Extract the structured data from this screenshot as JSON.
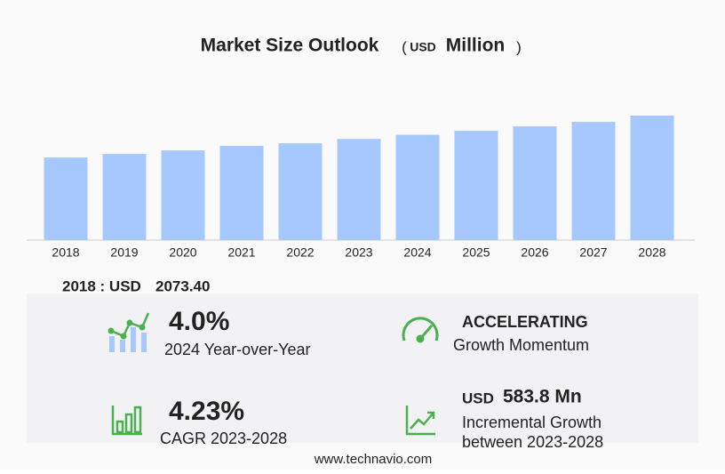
{
  "chart_data": {
    "type": "bar",
    "title": "Market Size Outlook",
    "unit_open": "(",
    "unit_currency": "USD",
    "unit_name": "Million",
    "unit_close": ")",
    "categories": [
      "2018",
      "2019",
      "2020",
      "2021",
      "2022",
      "2023",
      "2024",
      "2025",
      "2026",
      "2027",
      "2028"
    ],
    "values": [
      2073.4,
      2163,
      2252,
      2364,
      2430,
      2540,
      2642,
      2743,
      2854,
      2966,
      3124
    ],
    "color": "#a6c8ff",
    "ylim": [
      0,
      3124
    ]
  },
  "base": {
    "label": "2018 : USD",
    "value": "2073.40"
  },
  "highlights": {
    "yoy": {
      "value": "4.0%",
      "label": "2024 Year-over-Year"
    },
    "momentum": {
      "value": "ACCELERATING",
      "label": "Growth Momentum"
    },
    "cagr": {
      "value": "4.23%",
      "label": "CAGR 2023-2028"
    },
    "incremental": {
      "currency": "USD",
      "value": "583.8 Mn",
      "label": "Incremental Growth",
      "period": "between 2023-2028"
    }
  },
  "footer": "www.technavio.com"
}
